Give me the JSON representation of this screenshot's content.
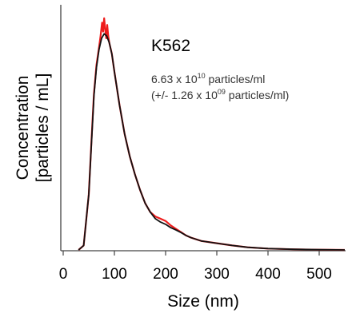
{
  "chart_data": {
    "type": "line",
    "title": "",
    "xlabel": "Size (nm)",
    "ylabel_line1": "Concentration",
    "ylabel_line2": "[particles / mL]",
    "xlim": [
      0,
      550
    ],
    "ylim": [
      0,
      1.05
    ],
    "x_ticks": [
      0,
      100,
      200,
      300,
      400,
      500
    ],
    "x_tick_labels": [
      "0",
      "100",
      "200",
      "300",
      "400",
      "500"
    ],
    "grid": false,
    "legend": "none",
    "series": [
      {
        "color": "#ee1c1c",
        "x": [
          30,
          40,
          50,
          55,
          60,
          65,
          70,
          73,
          76,
          78,
          80,
          82,
          84,
          86,
          88,
          90,
          95,
          100,
          110,
          120,
          130,
          140,
          150,
          160,
          170,
          180,
          190,
          200,
          210,
          220,
          230,
          240,
          250,
          270,
          300,
          330,
          360,
          400,
          450,
          500,
          550
        ],
        "y": [
          0,
          0.02,
          0.25,
          0.48,
          0.7,
          0.83,
          0.91,
          0.96,
          1.02,
          0.98,
          1.04,
          0.99,
          0.95,
          1.01,
          0.96,
          0.93,
          0.88,
          0.8,
          0.65,
          0.52,
          0.42,
          0.34,
          0.27,
          0.21,
          0.17,
          0.15,
          0.14,
          0.13,
          0.11,
          0.095,
          0.08,
          0.065,
          0.055,
          0.04,
          0.03,
          0.02,
          0.012,
          0.006,
          0.003,
          0.001,
          0.0
        ]
      },
      {
        "color": "#111111",
        "x": [
          30,
          40,
          50,
          55,
          60,
          65,
          70,
          75,
          80,
          85,
          90,
          95,
          100,
          110,
          120,
          130,
          140,
          150,
          160,
          170,
          180,
          190,
          200,
          210,
          220,
          230,
          240,
          250,
          270,
          300,
          330,
          360,
          400,
          450,
          500,
          550
        ],
        "y": [
          0,
          0.02,
          0.25,
          0.47,
          0.69,
          0.82,
          0.9,
          0.95,
          0.97,
          0.96,
          0.93,
          0.88,
          0.8,
          0.65,
          0.52,
          0.42,
          0.34,
          0.27,
          0.21,
          0.17,
          0.14,
          0.125,
          0.115,
          0.1,
          0.09,
          0.078,
          0.065,
          0.055,
          0.04,
          0.03,
          0.02,
          0.012,
          0.006,
          0.003,
          0.001,
          0.0
        ]
      }
    ],
    "annotation": {
      "sample": "K562",
      "conc_mantissa": "6.63 x 10",
      "conc_exp": "10",
      "conc_unit": " particles/ml",
      "err_prefix": "(+/- 1.26 x 10",
      "err_exp": "09",
      "err_unit": " particles/ml)"
    }
  }
}
